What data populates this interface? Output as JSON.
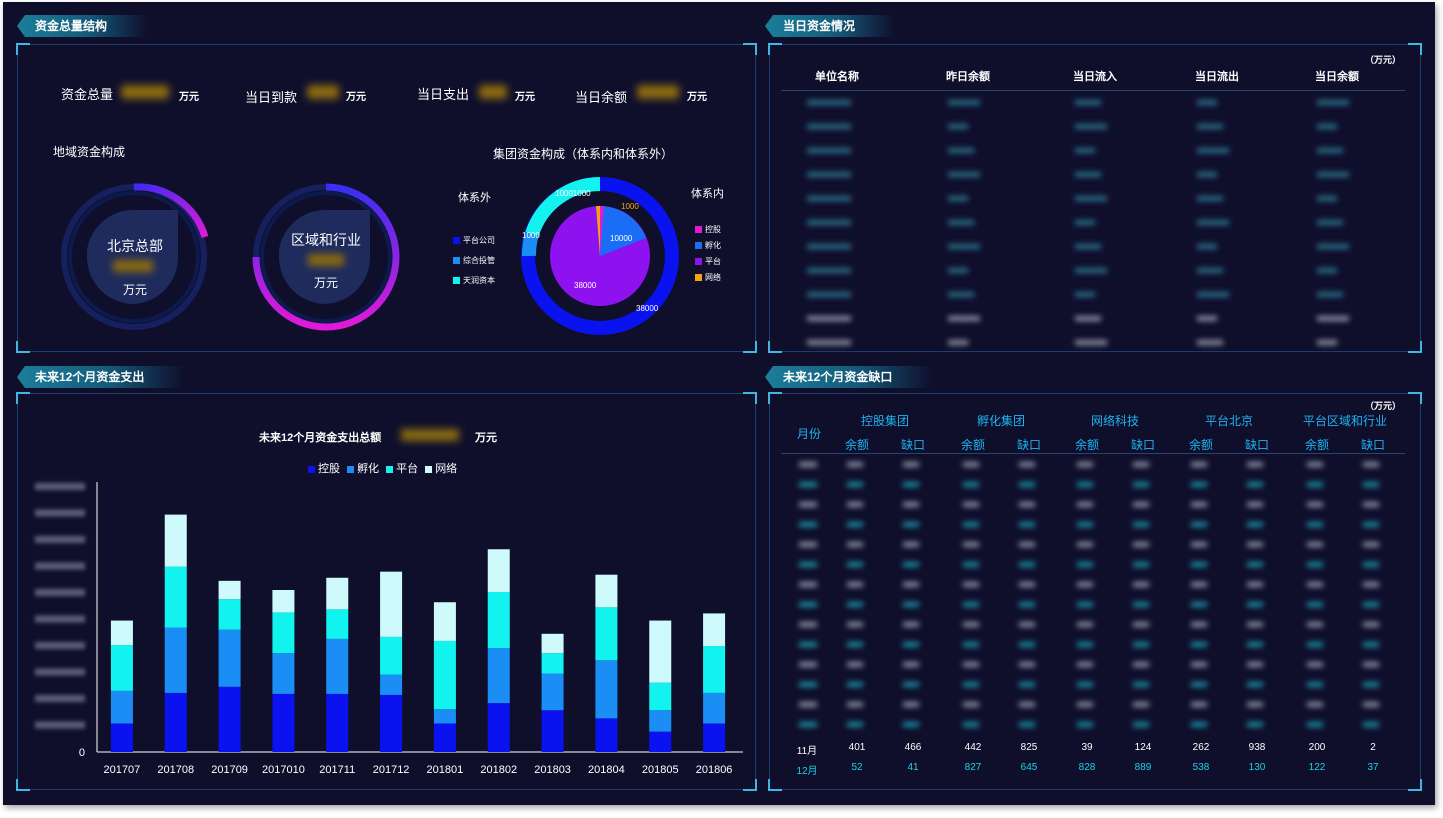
{
  "panels": {
    "capital_structure": {
      "title": "资金总量结构",
      "summary": [
        {
          "label": "资金总量",
          "unit": "万元"
        },
        {
          "label": "当日到款",
          "unit": "万元"
        },
        {
          "label": "当日支出",
          "unit": "万元"
        },
        {
          "label": "当日余额",
          "unit": "万元"
        }
      ],
      "regional_title": "地域资金构成",
      "rings": [
        {
          "label": "北京总部",
          "unit": "万元",
          "fill": 0.12
        },
        {
          "label": "区域和行业",
          "unit": "万元",
          "fill": 0.88
        }
      ],
      "group_title": "集团资金构成（体系内和体系外）",
      "outside_label": "体系外",
      "inside_label": "体系内",
      "outside_legend": [
        "平台公司",
        "综合投管",
        "天润资本"
      ],
      "inside_legend": [
        "控股",
        "孵化",
        "平台",
        "网络"
      ],
      "pie_labels": [
        "1000",
        "10000",
        "38000",
        "1000",
        "38000",
        "10001000"
      ]
    },
    "daily_capital": {
      "title": "当日资金情况",
      "unit": "（万元）",
      "columns": [
        "单位名称",
        "昨日余额",
        "当日流入",
        "当日流出",
        "当日余额"
      ]
    },
    "expenditure": {
      "title": "未来12个月资金支出",
      "chart_title": "未来12个月资金支出总额",
      "chart_unit": "万元"
    },
    "gap": {
      "title": "未来12个月资金缺口",
      "unit": "（万元）",
      "month_header": "月份",
      "groups": [
        "控股集团",
        "孵化集团",
        "网络科技",
        "平台北京",
        "平台区域和行业"
      ],
      "sub_headers": [
        "余额",
        "缺口"
      ],
      "visible_rows": [
        {
          "month": "11月",
          "values": [
            "401",
            "466",
            "442",
            "825",
            "39",
            "124",
            "262",
            "938",
            "200",
            "2"
          ]
        },
        {
          "month": "12月",
          "values": [
            "52",
            "41",
            "827",
            "645",
            "828",
            "889",
            "538",
            "130",
            "122",
            "37"
          ]
        }
      ]
    }
  },
  "colors": {
    "bg": "#0f0f2c",
    "blue": "#0a12f0",
    "mid_blue": "#1a8ef5",
    "cyan": "#12f3f0",
    "pale": "#cffafc",
    "purple": "#8e11f0",
    "magenta": "#e01ad8",
    "orange": "#f5a312"
  },
  "chart_data": {
    "type": "bar",
    "stacked": true,
    "title": "未来12个月资金支出总额",
    "categories": [
      "201707",
      "201708",
      "201709",
      "2017010",
      "201711",
      "201712",
      "201801",
      "201802",
      "201803",
      "201804",
      "201805",
      "201806"
    ],
    "legend": [
      "控股",
      "孵化",
      "平台",
      "网络"
    ],
    "yticks": [
      "0"
    ],
    "series": [
      {
        "name": "控股",
        "values": [
          28,
          58,
          64,
          57,
          57,
          56,
          28,
          48,
          41,
          33,
          20,
          28
        ]
      },
      {
        "name": "孵化",
        "values": [
          32,
          64,
          56,
          40,
          54,
          20,
          14,
          54,
          36,
          57,
          21,
          30
        ]
      },
      {
        "name": "平台",
        "values": [
          45,
          60,
          30,
          40,
          29,
          37,
          67,
          55,
          20,
          52,
          27,
          46
        ]
      },
      {
        "name": "网络",
        "values": [
          24,
          51,
          18,
          22,
          31,
          64,
          38,
          42,
          19,
          32,
          61,
          32
        ]
      }
    ],
    "ylim": [
      0,
      265
    ]
  }
}
